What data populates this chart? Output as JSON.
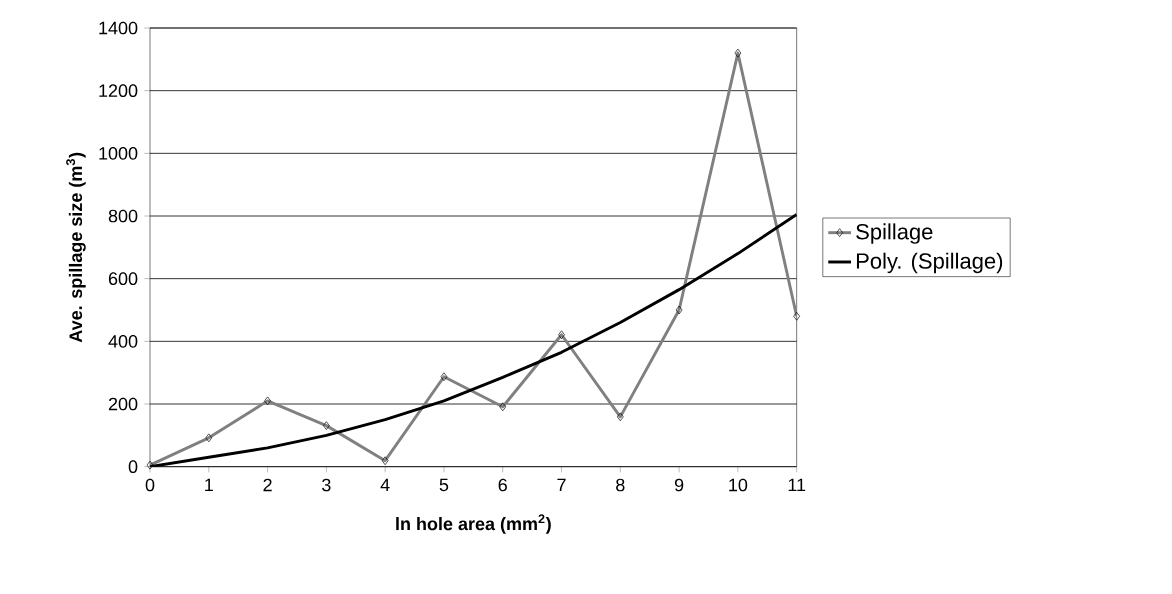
{
  "chart_data": {
    "type": "line",
    "xlabel": "ln hole area (mm$^{2}$)",
    "ylabel": "Ave. spillage size  (m$^{3}$)",
    "x": [
      0,
      1,
      2,
      3,
      4,
      5,
      6,
      7,
      8,
      9,
      10,
      11
    ],
    "series": [
      {
        "name": "Spillage",
        "color": "#808080",
        "marker": "diamond",
        "values": [
          5,
          92,
          210,
          131,
          19,
          287,
          191,
          421,
          159,
          500,
          1320,
          480
        ]
      },
      {
        "name": "Poly. (Spillage)",
        "color": "#000000",
        "marker": "none",
        "values": [
          0,
          30,
          60,
          100,
          150,
          210,
          285,
          365,
          460,
          565,
          680,
          805
        ]
      }
    ],
    "xlim": [
      0,
      11
    ],
    "xticks": [
      0,
      1,
      2,
      3,
      4,
      5,
      6,
      7,
      8,
      9,
      10,
      11
    ],
    "ylim": [
      0,
      1400
    ],
    "yticks": [
      0,
      200,
      400,
      600,
      800,
      1000,
      1200,
      1400
    ],
    "grid": "y",
    "legend": "right",
    "line_style": "solid"
  }
}
